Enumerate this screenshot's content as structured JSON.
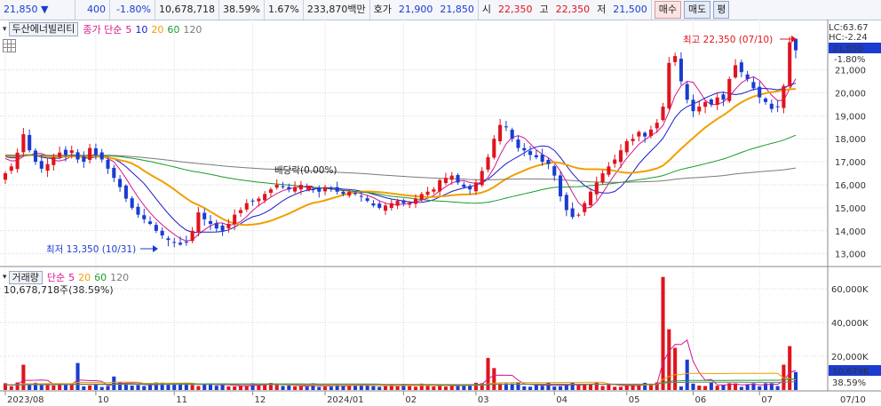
{
  "topbar": {
    "price": "21,850",
    "change": "400",
    "change_pct": "-1.80%",
    "volume": "10,678,718",
    "turnover_pct": "38.59%",
    "pct2": "1.67%",
    "trade_value": "233,870백만",
    "quote_label": "호가",
    "bid": "21,900",
    "ask": "21,850",
    "open_label": "시",
    "open": "22,350",
    "high_label": "고",
    "high": "22,350",
    "low_label": "저",
    "low": "21,500",
    "buy_label": "매수",
    "sell_label": "매도",
    "eval_label": "평"
  },
  "price_legend": {
    "stock_name": "두산에너빌리티",
    "ma_label": "종가 단순",
    "ma_periods": [
      "5",
      "10",
      "20",
      "60",
      "120"
    ]
  },
  "volume_legend": {
    "title": "거래량",
    "ma_label": "단순",
    "ma_periods": [
      "5",
      "20",
      "60",
      "120"
    ],
    "current": "10,678,718주(38.59%)"
  },
  "annotations": {
    "high": "최고 22,350 (07/10)",
    "low": "최저 13,350 (10/31)",
    "dividend": "배당락(0.00%)"
  },
  "right_labels": {
    "lc": "LC:63.67",
    "hc": "HC:-2.24",
    "price_box": "21,850",
    "price_chg": "-1.80%",
    "vol_box": "10,679K",
    "vol_pct": "38.59%"
  },
  "colors": {
    "up": "#e0141e",
    "down": "#1a3cd0",
    "ma5": "#d4168f",
    "ma10": "#1a1acb",
    "ma20": "#f0a000",
    "ma60": "#1a9a2c",
    "ma120": "#7a7a7a",
    "vol_ma120": "#7a7a7a"
  },
  "chart_data": [
    {
      "type": "candlestick",
      "title": "두산에너빌리티",
      "x_ticks": [
        "2023/08",
        "10",
        "11",
        "12",
        "2024/01",
        "02",
        "03",
        "04",
        "05",
        "06",
        "07",
        "07/10"
      ],
      "y_ticks": [
        "21,000",
        "20,000",
        "19,000",
        "18,000",
        "17,000",
        "16,000",
        "15,000",
        "14,000",
        "13,000"
      ],
      "ylim": [
        12600,
        22800
      ],
      "grid": true,
      "closes": [
        16500,
        16800,
        17400,
        18200,
        17500,
        17000,
        16700,
        16900,
        17200,
        17400,
        17300,
        17500,
        17100,
        17000,
        17600,
        17300,
        17100,
        16700,
        16300,
        15900,
        15400,
        15000,
        14700,
        14500,
        14300,
        14000,
        13800,
        13600,
        13500,
        13400,
        13500,
        14000,
        14800,
        14500,
        14300,
        14100,
        14000,
        14300,
        14700,
        14900,
        15200,
        15300,
        15400,
        15600,
        15800,
        16000,
        15900,
        15800,
        15900,
        16000,
        15900,
        15800,
        15700,
        15900,
        15800,
        15700,
        15600,
        15700,
        15600,
        15500,
        15300,
        15100,
        15000,
        15100,
        15200,
        15300,
        15200,
        15200,
        15400,
        15600,
        15700,
        15800,
        16200,
        16300,
        16400,
        16100,
        15900,
        15800,
        16100,
        16600,
        17200,
        18000,
        18600,
        18500,
        18000,
        17600,
        17500,
        17300,
        17200,
        17000,
        16900,
        16400,
        15500,
        14900,
        14600,
        14700,
        15200,
        15700,
        16100,
        16500,
        16800,
        17100,
        17500,
        17900,
        18000,
        18300,
        18100,
        18400,
        18700,
        19400,
        21300,
        21600,
        20500,
        19700,
        19200,
        19400,
        19600,
        19500,
        19800,
        19700,
        20600,
        21200,
        20900,
        20600,
        20200,
        19800,
        19600,
        19300,
        19400,
        20300,
        22200,
        21850
      ],
      "ma_series": [
        {
          "name": "5",
          "period": 5
        },
        {
          "name": "10",
          "period": 10
        },
        {
          "name": "20",
          "period": 20
        },
        {
          "name": "60",
          "period": 60
        },
        {
          "name": "120",
          "period": 120
        }
      ],
      "annotations": [
        {
          "label": "최고 22,350 (07/10)",
          "value": 22350
        },
        {
          "label": "최저 13,350 (10/31)",
          "value": 13350
        },
        {
          "label": "배당락(0.00%)"
        }
      ]
    },
    {
      "type": "bar",
      "title": "거래량",
      "y_ticks": [
        "60,000K",
        "40,000K",
        "20,000K"
      ],
      "ylim": [
        0,
        70000
      ],
      "unit": "K",
      "spikes": [
        {
          "index": 3,
          "value": 15000
        },
        {
          "index": 12,
          "value": 16000
        },
        {
          "index": 18,
          "value": 8000
        },
        {
          "index": 80,
          "value": 19000
        },
        {
          "index": 81,
          "value": 13000
        },
        {
          "index": 109,
          "value": 67000
        },
        {
          "index": 110,
          "value": 36000
        },
        {
          "index": 111,
          "value": 25000
        },
        {
          "index": 113,
          "value": 18000
        },
        {
          "index": 129,
          "value": 15000
        },
        {
          "index": 130,
          "value": 26000
        },
        {
          "index": 131,
          "value": 10679
        }
      ],
      "baseline_volume": 3000
    }
  ]
}
